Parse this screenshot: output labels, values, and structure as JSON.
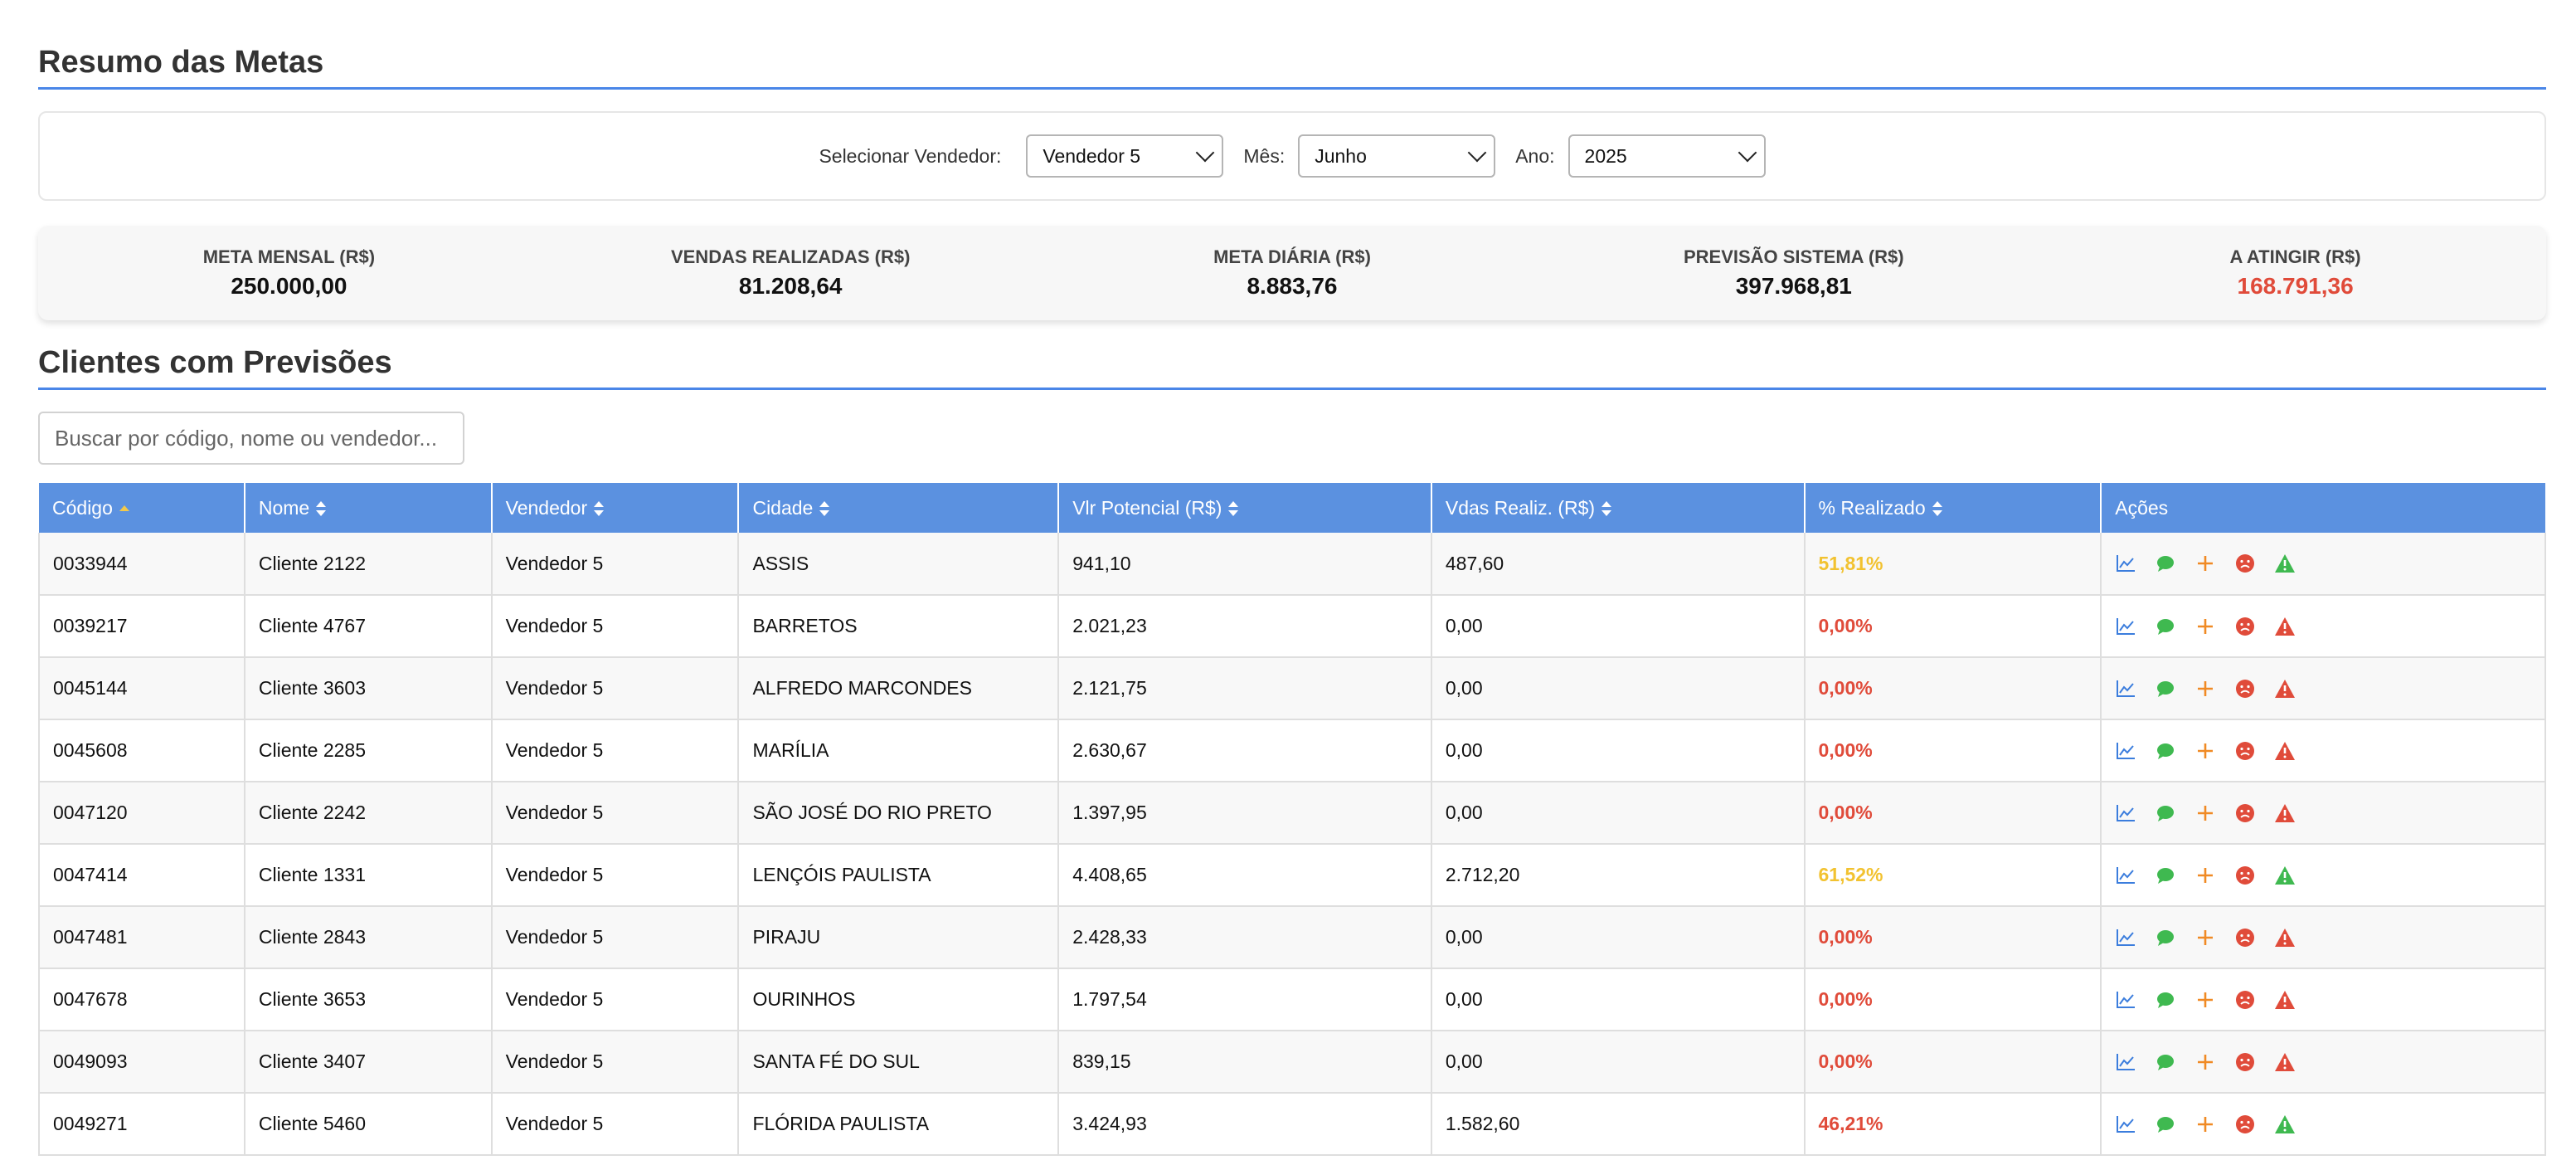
{
  "summary_title": "Resumo das Metas",
  "filters": {
    "vendor_label": "Selecionar Vendedor:",
    "vendor_value": "Vendedor 5",
    "month_label": "Mês:",
    "month_value": "Junho",
    "year_label": "Ano:",
    "year_value": "2025"
  },
  "stats": [
    {
      "label": "META MENSAL (R$)",
      "value": "250.000,00"
    },
    {
      "label": "VENDAS REALIZADAS (R$)",
      "value": "81.208,64"
    },
    {
      "label": "META DIÁRIA (R$)",
      "value": "8.883,76"
    },
    {
      "label": "PREVISÃO SISTEMA (R$)",
      "value": "397.968,81"
    },
    {
      "label": "A ATINGIR (R$)",
      "value": "168.791,36"
    }
  ],
  "clients_title": "Clientes com Previsões",
  "search": {
    "placeholder": "Buscar por código, nome ou vendedor..."
  },
  "colors": {
    "accent": "#4a86e8",
    "header": "#5b91e0",
    "red": "#e04b3a",
    "yellow": "#f2c230",
    "green": "#3fb950"
  },
  "table": {
    "headers": [
      "Código",
      "Nome",
      "Vendedor",
      "Cidade",
      "Vlr Potencial (R$)",
      "Vdas Realiz. (R$)",
      "% Realizado",
      "Ações"
    ],
    "rows": [
      {
        "codigo": "0033944",
        "nome": "Cliente 2122",
        "vendedor": "Vendedor 5",
        "cidade": "ASSIS",
        "potencial": "941,10",
        "realizado": "487,60",
        "pct": "51,81%",
        "pct_color": "yellow",
        "alert_color": "green"
      },
      {
        "codigo": "0039217",
        "nome": "Cliente 4767",
        "vendedor": "Vendedor 5",
        "cidade": "BARRETOS",
        "potencial": "2.021,23",
        "realizado": "0,00",
        "pct": "0,00%",
        "pct_color": "red",
        "alert_color": "red"
      },
      {
        "codigo": "0045144",
        "nome": "Cliente 3603",
        "vendedor": "Vendedor 5",
        "cidade": "ALFREDO MARCONDES",
        "potencial": "2.121,75",
        "realizado": "0,00",
        "pct": "0,00%",
        "pct_color": "red",
        "alert_color": "red"
      },
      {
        "codigo": "0045608",
        "nome": "Cliente 2285",
        "vendedor": "Vendedor 5",
        "cidade": "MARÍLIA",
        "potencial": "2.630,67",
        "realizado": "0,00",
        "pct": "0,00%",
        "pct_color": "red",
        "alert_color": "red"
      },
      {
        "codigo": "0047120",
        "nome": "Cliente 2242",
        "vendedor": "Vendedor 5",
        "cidade": "SÃO JOSÉ DO RIO PRETO",
        "potencial": "1.397,95",
        "realizado": "0,00",
        "pct": "0,00%",
        "pct_color": "red",
        "alert_color": "red"
      },
      {
        "codigo": "0047414",
        "nome": "Cliente 1331",
        "vendedor": "Vendedor 5",
        "cidade": "LENÇÓIS PAULISTA",
        "potencial": "4.408,65",
        "realizado": "2.712,20",
        "pct": "61,52%",
        "pct_color": "yellow",
        "alert_color": "green"
      },
      {
        "codigo": "0047481",
        "nome": "Cliente 2843",
        "vendedor": "Vendedor 5",
        "cidade": "PIRAJU",
        "potencial": "2.428,33",
        "realizado": "0,00",
        "pct": "0,00%",
        "pct_color": "red",
        "alert_color": "red"
      },
      {
        "codigo": "0047678",
        "nome": "Cliente 3653",
        "vendedor": "Vendedor 5",
        "cidade": "OURINHOS",
        "potencial": "1.797,54",
        "realizado": "0,00",
        "pct": "0,00%",
        "pct_color": "red",
        "alert_color": "red"
      },
      {
        "codigo": "0049093",
        "nome": "Cliente 3407",
        "vendedor": "Vendedor 5",
        "cidade": "SANTA FÉ DO SUL",
        "potencial": "839,15",
        "realizado": "0,00",
        "pct": "0,00%",
        "pct_color": "red",
        "alert_color": "red"
      },
      {
        "codigo": "0049271",
        "nome": "Cliente 5460",
        "vendedor": "Vendedor 5",
        "cidade": "FLÓRIDA PAULISTA",
        "potencial": "3.424,93",
        "realizado": "1.582,60",
        "pct": "46,21%",
        "pct_color": "red",
        "alert_color": "green"
      }
    ]
  }
}
